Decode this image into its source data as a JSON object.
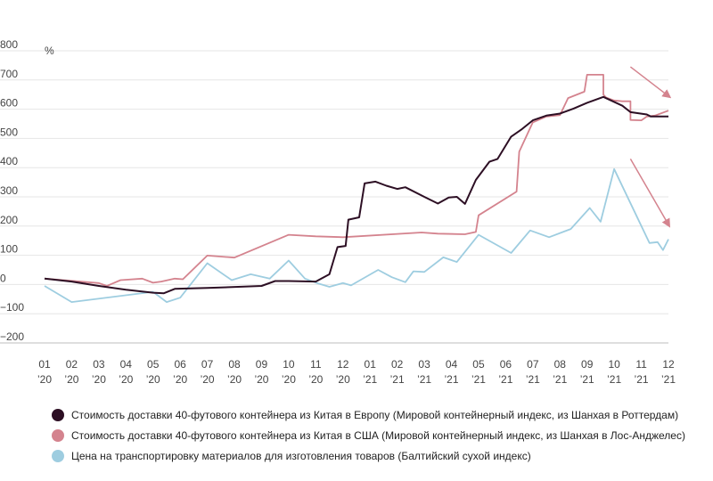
{
  "chart_data": {
    "type": "line",
    "ylabel": "%",
    "ylim": [
      -200,
      800
    ],
    "yticks": [
      "800",
      "700",
      "600",
      "500",
      "400",
      "300",
      "200",
      "100",
      "0",
      "−100",
      "−200"
    ],
    "ytick_values": [
      800,
      700,
      600,
      500,
      400,
      300,
      200,
      100,
      0,
      -100,
      -200
    ],
    "xlim": [
      0,
      23
    ],
    "xticks": [
      {
        "x": 0,
        "month": "01",
        "year": "’20"
      },
      {
        "x": 1,
        "month": "02",
        "year": "’20"
      },
      {
        "x": 2,
        "month": "03",
        "year": "’20"
      },
      {
        "x": 3,
        "month": "04",
        "year": "’20"
      },
      {
        "x": 4,
        "month": "05",
        "year": "’20"
      },
      {
        "x": 5,
        "month": "06",
        "year": "’20"
      },
      {
        "x": 6,
        "month": "07",
        "year": "’20"
      },
      {
        "x": 7,
        "month": "08",
        "year": "’20"
      },
      {
        "x": 8,
        "month": "09",
        "year": "’20"
      },
      {
        "x": 9,
        "month": "10",
        "year": "’20"
      },
      {
        "x": 10,
        "month": "11",
        "year": "’20"
      },
      {
        "x": 11,
        "month": "12",
        "year": "’20"
      },
      {
        "x": 12,
        "month": "01",
        "year": "’21"
      },
      {
        "x": 13,
        "month": "02",
        "year": "’21"
      },
      {
        "x": 14,
        "month": "03",
        "year": "’21"
      },
      {
        "x": 15,
        "month": "04",
        "year": "’21"
      },
      {
        "x": 16,
        "month": "05",
        "year": "’21"
      },
      {
        "x": 17,
        "month": "06",
        "year": "’21"
      },
      {
        "x": 18,
        "month": "07",
        "year": "’21"
      },
      {
        "x": 19,
        "month": "08",
        "year": "’21"
      },
      {
        "x": 20,
        "month": "09",
        "year": "’21"
      },
      {
        "x": 21,
        "month": "10",
        "year": "’21"
      },
      {
        "x": 22,
        "month": "11",
        "year": "’21"
      },
      {
        "x": 23,
        "month": "12",
        "year": "’21"
      }
    ],
    "series": [
      {
        "name": "Стоимость доставки 40-футового контейнера из Китая в Европу (Мировой контейнерный индекс, из Шанхая в Роттердам)",
        "color": "#2d0f24",
        "points": [
          [
            0,
            20
          ],
          [
            1,
            10
          ],
          [
            2,
            -5
          ],
          [
            3,
            -18
          ],
          [
            4,
            -28
          ],
          [
            4.4,
            -30
          ],
          [
            4.8,
            -15
          ],
          [
            6,
            -12
          ],
          [
            8,
            -5
          ],
          [
            8.5,
            12
          ],
          [
            9,
            12
          ],
          [
            10,
            10
          ],
          [
            10.5,
            35
          ],
          [
            10.8,
            128
          ],
          [
            11.1,
            132
          ],
          [
            11.2,
            222
          ],
          [
            11.6,
            230
          ],
          [
            11.8,
            346
          ],
          [
            12.2,
            352
          ],
          [
            12.6,
            338
          ],
          [
            13,
            327
          ],
          [
            13.3,
            333
          ],
          [
            14,
            300
          ],
          [
            14.5,
            277
          ],
          [
            14.9,
            298
          ],
          [
            15.2,
            300
          ],
          [
            15.5,
            276
          ],
          [
            15.9,
            358
          ],
          [
            16.4,
            420
          ],
          [
            16.7,
            430
          ],
          [
            17.2,
            506
          ],
          [
            17.6,
            532
          ],
          [
            18,
            562
          ],
          [
            18.5,
            578
          ],
          [
            19,
            585
          ],
          [
            19.5,
            602
          ],
          [
            20,
            622
          ],
          [
            20.6,
            642
          ],
          [
            21.3,
            612
          ],
          [
            21.6,
            590
          ],
          [
            22.2,
            582
          ],
          [
            22.35,
            575
          ],
          [
            23,
            575
          ]
        ]
      },
      {
        "name": "Стоимость доставки 40-футового контейнера из Китая в США (Мировой контейнерный индекс, из Шанхая в Лос-Анджелес)",
        "color": "#d4838e",
        "points": [
          [
            0,
            20
          ],
          [
            2,
            5
          ],
          [
            2.3,
            -5
          ],
          [
            2.8,
            15
          ],
          [
            3.6,
            20
          ],
          [
            4,
            6
          ],
          [
            4.3,
            10
          ],
          [
            4.8,
            20
          ],
          [
            5.1,
            18
          ],
          [
            6,
            99
          ],
          [
            7,
            92
          ],
          [
            9,
            170
          ],
          [
            10,
            165
          ],
          [
            11,
            162
          ],
          [
            13.9,
            178
          ],
          [
            14.5,
            174
          ],
          [
            15.5,
            172
          ],
          [
            15.9,
            180
          ],
          [
            16,
            237
          ],
          [
            17.4,
            318
          ],
          [
            17.5,
            455
          ],
          [
            18,
            555
          ],
          [
            18.5,
            575
          ],
          [
            19,
            580
          ],
          [
            19.3,
            638
          ],
          [
            19.9,
            660
          ],
          [
            20.0,
            718
          ],
          [
            20.6,
            718
          ],
          [
            20.6,
            650
          ],
          [
            20.7,
            640
          ],
          [
            21.0,
            630
          ],
          [
            21.3,
            627
          ],
          [
            21.6,
            627
          ],
          [
            21.6,
            563
          ],
          [
            22.0,
            562
          ],
          [
            22.2,
            575
          ],
          [
            22.5,
            578
          ],
          [
            23,
            595
          ]
        ]
      },
      {
        "name": "Цена на транспортировку материалов для изготовления товаров (Балтийский сухой индекс)",
        "color": "#9ecde0",
        "points": [
          [
            0,
            -5
          ],
          [
            1,
            -60
          ],
          [
            4,
            -25
          ],
          [
            4.5,
            -60
          ],
          [
            5,
            -45
          ],
          [
            6,
            73
          ],
          [
            6.9,
            15
          ],
          [
            7.6,
            35
          ],
          [
            8.3,
            20
          ],
          [
            9,
            82
          ],
          [
            9.6,
            20
          ],
          [
            10.1,
            3
          ],
          [
            10.5,
            -8
          ],
          [
            11,
            5
          ],
          [
            11.3,
            -3
          ],
          [
            12.3,
            50
          ],
          [
            12.8,
            25
          ],
          [
            13.3,
            8
          ],
          [
            13.6,
            45
          ],
          [
            14,
            43
          ],
          [
            14.7,
            93
          ],
          [
            15.2,
            77
          ],
          [
            16,
            170
          ],
          [
            17.2,
            108
          ],
          [
            17.9,
            185
          ],
          [
            18.6,
            162
          ],
          [
            19.4,
            190
          ],
          [
            20.1,
            262
          ],
          [
            20.5,
            215
          ],
          [
            21,
            395
          ],
          [
            21.9,
            220
          ],
          [
            22.3,
            142
          ],
          [
            22.6,
            145
          ],
          [
            22.8,
            118
          ],
          [
            23,
            155
          ]
        ]
      }
    ],
    "annotations": [
      {
        "type": "arrow",
        "color": "#d4838e",
        "from": [
          21.6,
          745
        ],
        "to": [
          23,
          645
        ]
      },
      {
        "type": "arrow",
        "color": "#d4838e",
        "from": [
          21.6,
          430
        ],
        "to": [
          23,
          205
        ]
      }
    ]
  }
}
